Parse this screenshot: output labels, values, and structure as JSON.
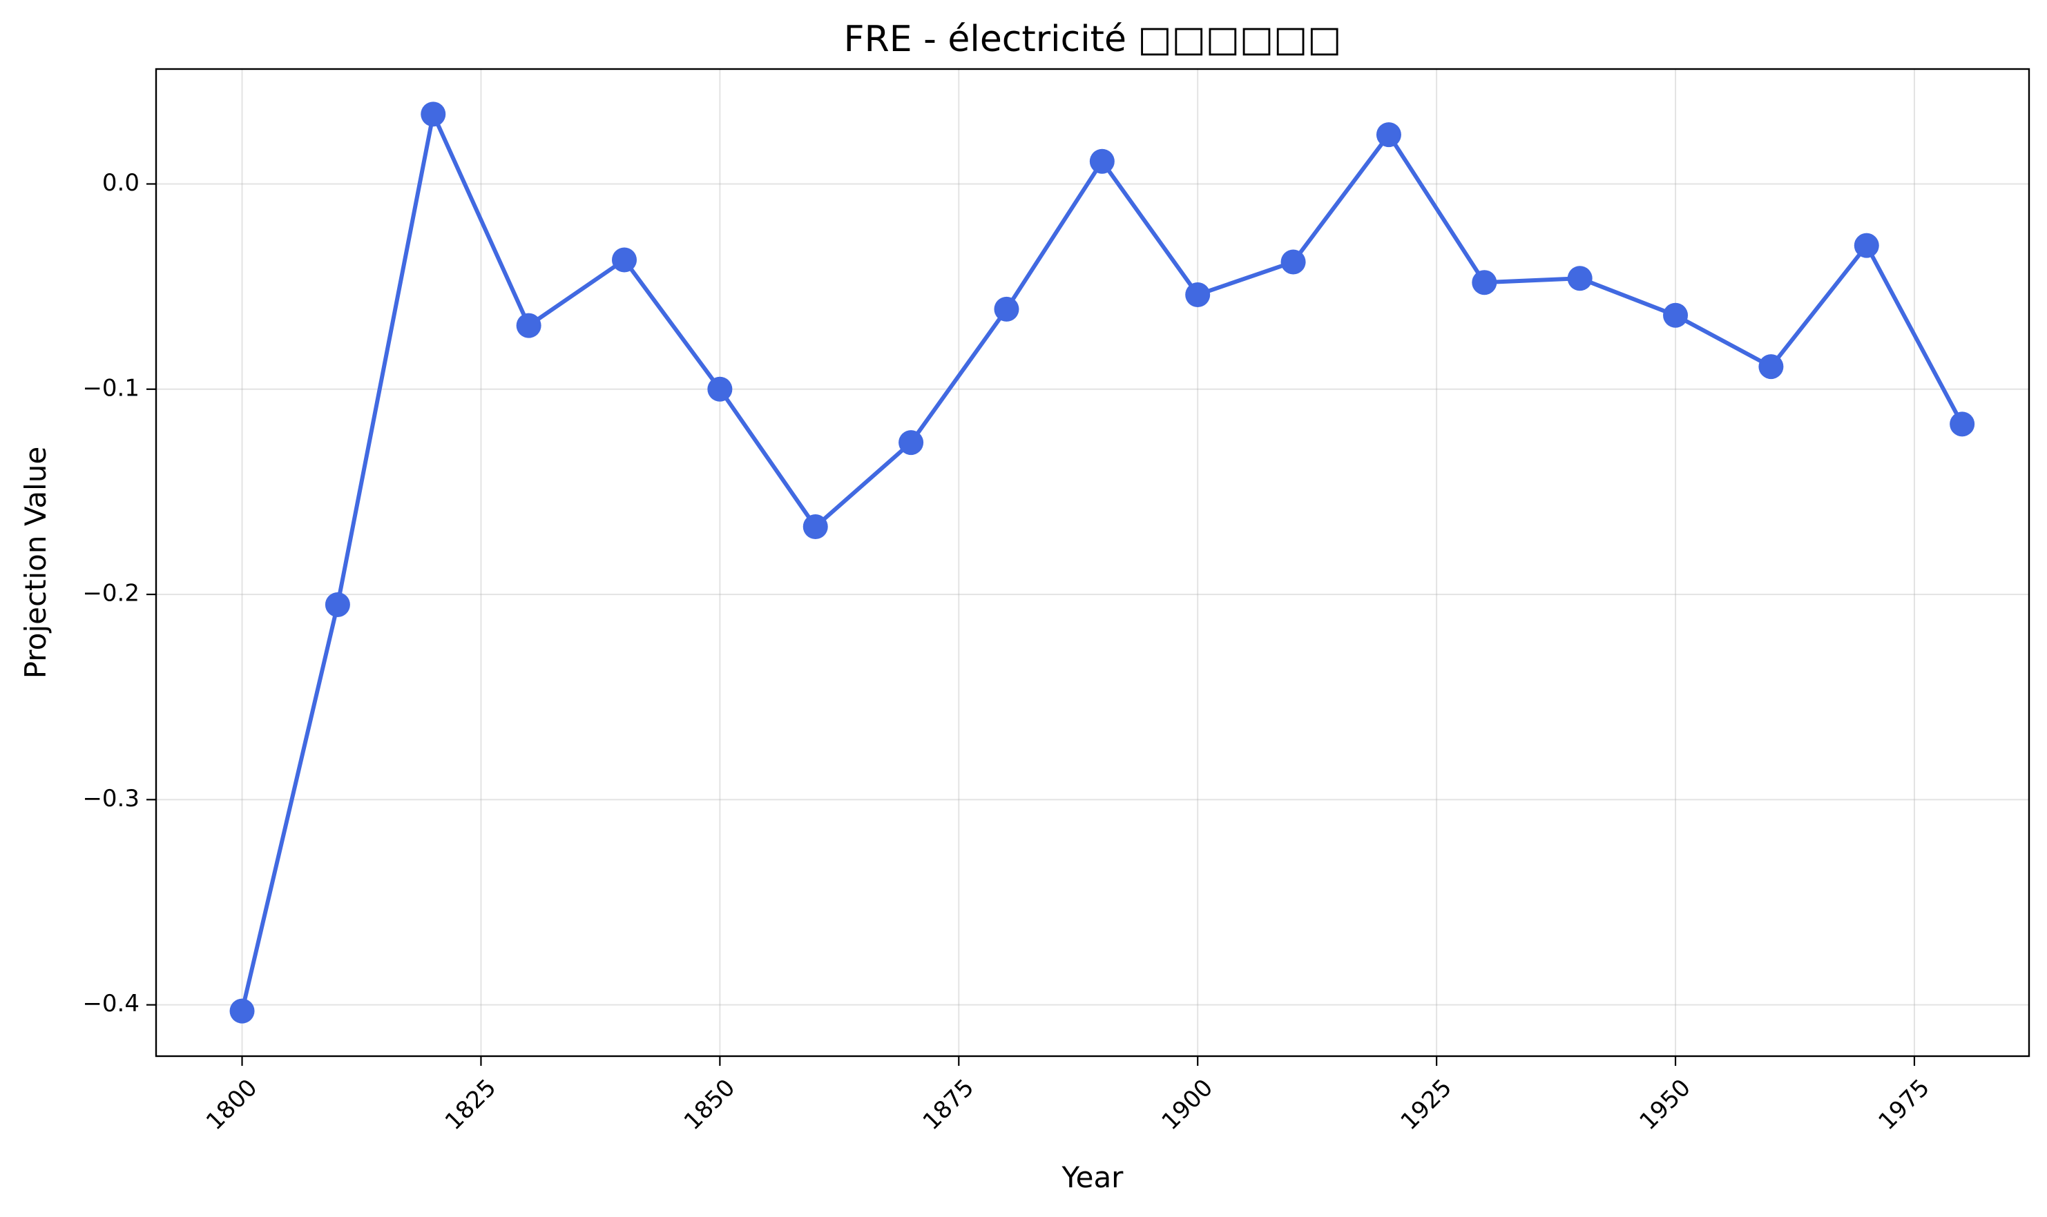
{
  "chart_data": {
    "type": "line",
    "title": "FRE - électricité □□□□□□",
    "xlabel": "Year",
    "ylabel": "Projection Value",
    "xlim": [
      1791,
      1987
    ],
    "ylim": [
      -0.425,
      0.056
    ],
    "x_ticks": [
      1800,
      1825,
      1850,
      1875,
      1900,
      1925,
      1950,
      1975
    ],
    "y_ticks": [
      0.0,
      -0.1,
      -0.2,
      -0.3,
      -0.4
    ],
    "y_tick_labels": [
      "0.0",
      "−0.1",
      "−0.2",
      "−0.3",
      "−0.4"
    ],
    "grid": true,
    "x_tick_rotation": 45,
    "series": [
      {
        "color": "#4169e1",
        "marker": "circle",
        "x": [
          1800,
          1810,
          1820,
          1830,
          1840,
          1850,
          1860,
          1870,
          1880,
          1890,
          1900,
          1910,
          1920,
          1930,
          1940,
          1950,
          1960,
          1970,
          1980
        ],
        "values": [
          -0.403,
          -0.205,
          0.034,
          -0.069,
          -0.037,
          -0.1,
          -0.167,
          -0.126,
          -0.061,
          0.011,
          -0.054,
          -0.038,
          0.024,
          -0.048,
          -0.046,
          -0.064,
          -0.089,
          -0.03,
          -0.117
        ]
      }
    ]
  }
}
